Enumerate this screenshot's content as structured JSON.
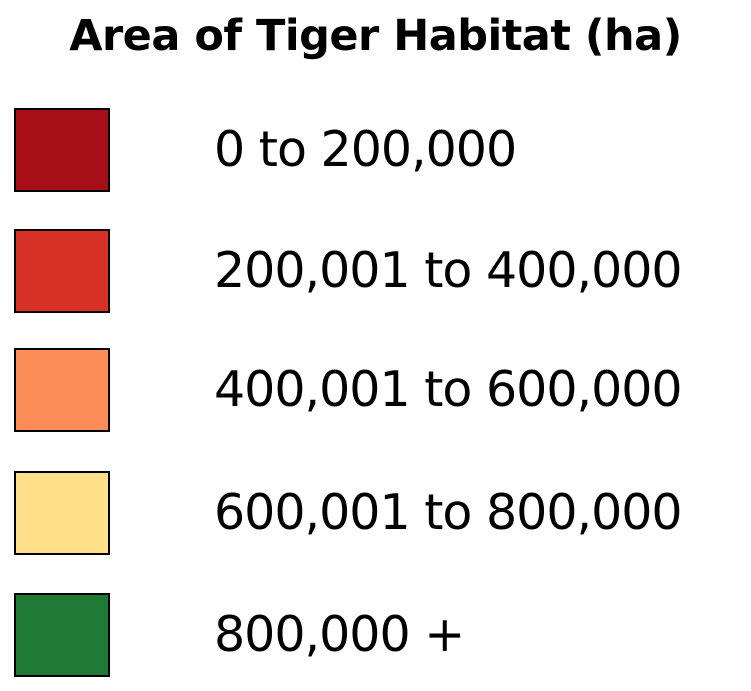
{
  "legend": {
    "title": "Area of Tiger Habitat (ha)",
    "items": [
      {
        "label": "0 to 200,000",
        "color": "#a50f15"
      },
      {
        "label": "200,001 to 400,000",
        "color": "#d73027"
      },
      {
        "label": "400,001 to 600,000",
        "color": "#fc8d59"
      },
      {
        "label": "600,001 to 800,000",
        "color": "#fee08b"
      },
      {
        "label": "800,000 +",
        "color": "#1f7a35"
      }
    ]
  }
}
